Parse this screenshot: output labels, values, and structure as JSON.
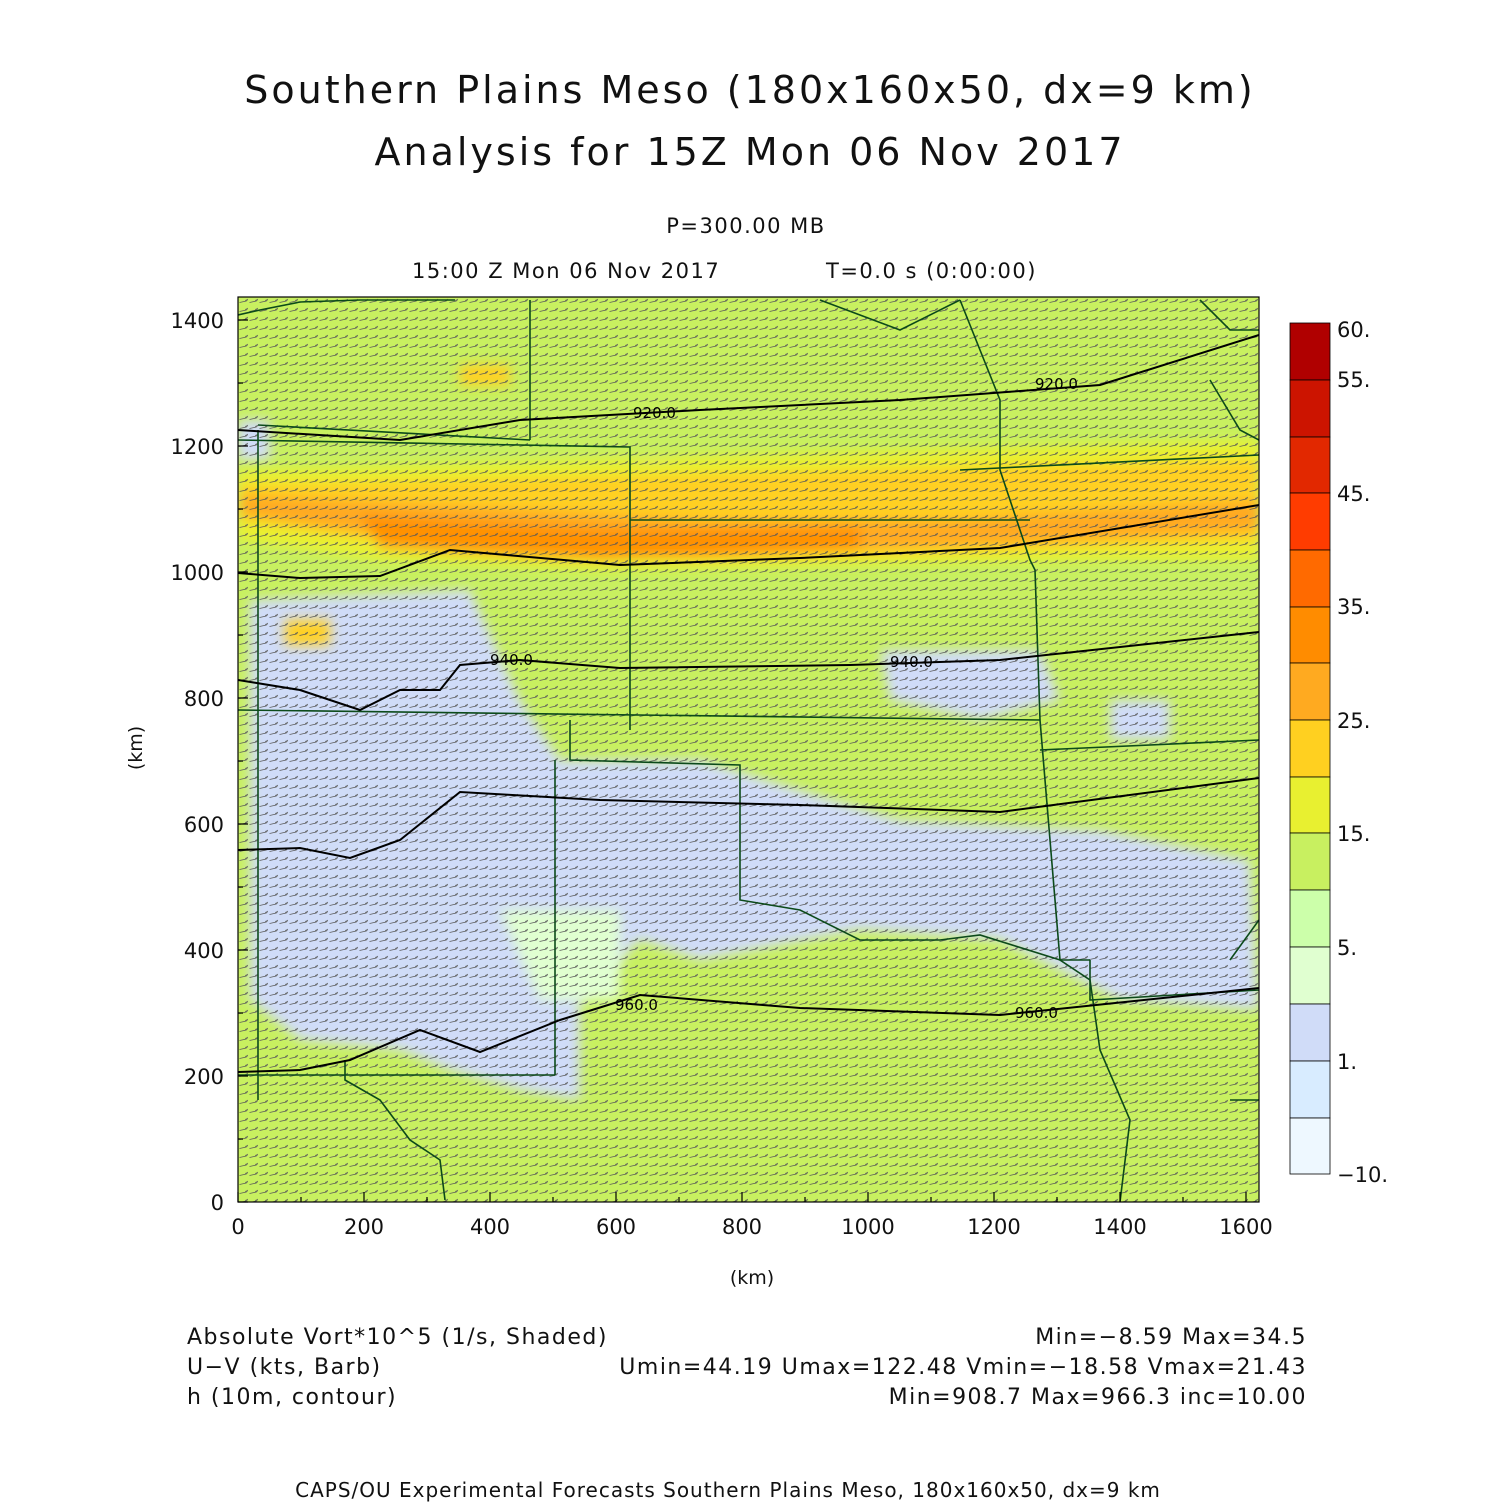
{
  "header": {
    "title": "Southern Plains Meso (180x160x50, dx=9 km)",
    "subtitle": "Analysis for 15Z Mon 06 Nov 2017",
    "level": "P=300.00 MB",
    "valid_time": "15:00 Z Mon 06 Nov 2017",
    "forecast_time": "T=0.0 s (0:00:00)"
  },
  "axes": {
    "x_label": "(km)",
    "y_label": "(km)",
    "x_ticks": [
      "0",
      "200",
      "400",
      "600",
      "800",
      "1000",
      "1200",
      "1400",
      "1600"
    ],
    "y_ticks": [
      "0",
      "200",
      "400",
      "600",
      "800",
      "1000",
      "1200",
      "1400"
    ],
    "x_range": [
      0,
      1620
    ],
    "y_range": [
      0,
      1440
    ]
  },
  "colorbar": {
    "labels": [
      "60.",
      "55.",
      "45.",
      "35.",
      "25.",
      "15.",
      "5.",
      "1.",
      "−10."
    ],
    "colors_top_to_bottom": [
      "#b00000",
      "#d01000",
      "#e82800",
      "#ff3c00",
      "#ff6a00",
      "#ff8c00",
      "#ffaa20",
      "#ffd020",
      "#e8f030",
      "#c8f060",
      "#ccffaa",
      "#e0ffd0",
      "#d0dcf8",
      "#d8ecff",
      "#eef8ff"
    ]
  },
  "contours": {
    "labels": [
      "920.0",
      "920.0",
      "940.0",
      "940.0",
      "960.0",
      "960.0"
    ]
  },
  "legend": {
    "vort_label": "Absolute Vort*10^5 (1/s, Shaded)",
    "vort_stats": "Min=−8.59 Max=34.5",
    "wind_label": "U−V (kts, Barb)",
    "wind_stats": "Umin=44.19 Umax=122.48 Vmin=−18.58 Vmax=21.43",
    "height_label": "h (10m, contour)",
    "height_stats": "Min=908.7 Max=966.3 inc=10.00"
  },
  "footer": "CAPS/OU Experimental Forecasts  Southern Plains Meso, 180x160x50, dx=9 km"
}
